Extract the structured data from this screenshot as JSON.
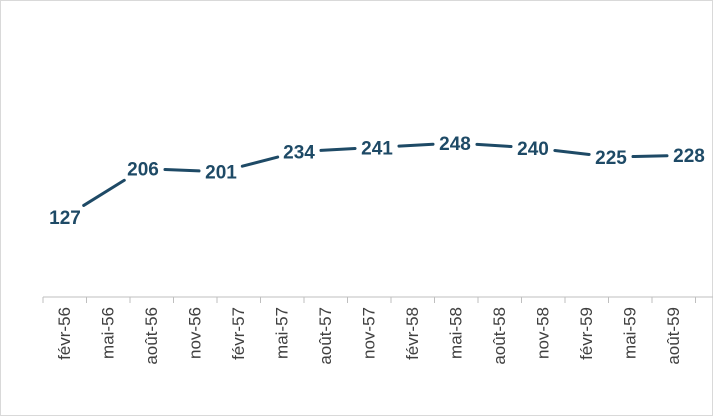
{
  "chart_data": {
    "type": "line",
    "x": [
      "févr-56",
      "mai-56",
      "août-56",
      "nov-56",
      "févr-57",
      "mai-57",
      "août-57",
      "nov-57",
      "févr-58",
      "mai-58",
      "août-58",
      "nov-58",
      "févr-59",
      "mai-59",
      "août-59"
    ],
    "points": [
      {
        "x": "févr-56",
        "y": 127,
        "label": "127"
      },
      {
        "x": "mai-56",
        "y": 206,
        "label": "206"
      },
      {
        "x": "févr-57",
        "y": 201,
        "label": "201"
      },
      {
        "x": "mai-57",
        "y": 234,
        "label": "234"
      },
      {
        "x": "août-57",
        "y": 241,
        "label": "241"
      },
      {
        "x": "févr-58",
        "y": 248,
        "label": "248"
      },
      {
        "x": "mai-58",
        "y": 240,
        "label": "240"
      },
      {
        "x": "août-58",
        "y": 225,
        "label": "225"
      },
      {
        "x": "août-59",
        "y": 228,
        "label": "228"
      }
    ],
    "title": "",
    "xlabel": "",
    "ylabel": "",
    "grid": false,
    "colors": {
      "line": "#1e4a66",
      "axis": "#bfbfbf",
      "tick_text": "#404040"
    }
  }
}
